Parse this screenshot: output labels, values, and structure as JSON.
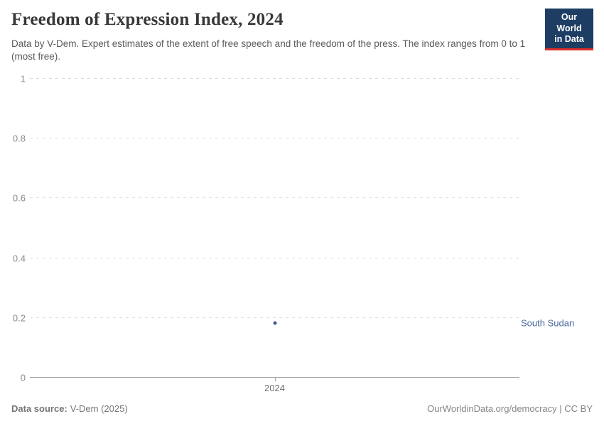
{
  "header": {
    "title": "Freedom of Expression Index, 2024",
    "subtitle": "Data by V-Dem. Expert estimates of the extent of free speech and the freedom of the press. The index ranges from 0 to 1 (most free).",
    "logo": {
      "line1": "Our World",
      "line2": "in Data",
      "bg_color": "#1d3d63",
      "accent_color": "#dc2e27"
    }
  },
  "chart_data": {
    "type": "scatter",
    "title": "Freedom of Expression Index, 2024",
    "x": [
      2024
    ],
    "xticks": [
      "2024"
    ],
    "series": [
      {
        "name": "South Sudan",
        "values": [
          0.18
        ],
        "color": "#44598c",
        "label_color": "#4c6a9c"
      }
    ],
    "ylim": [
      0,
      1
    ],
    "yticks": [
      0,
      0.2,
      0.4,
      0.6,
      0.8,
      1
    ],
    "grid": "horizontal-dashed",
    "legend_position": "entity label right of plot"
  },
  "footer": {
    "source_label": "Data source:",
    "source_value": "V-Dem (2025)",
    "right_text": "OurWorldinData.org/democracy | CC BY"
  }
}
